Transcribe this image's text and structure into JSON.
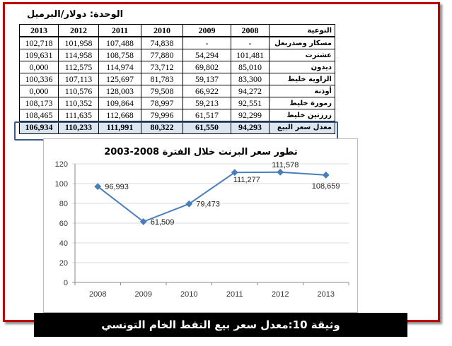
{
  "unit": "الوحدة: دولار/البرميل",
  "table": {
    "headers": [
      "النوعية",
      "2008",
      "2009",
      "2010",
      "2011",
      "2012",
      "2013"
    ],
    "rows": [
      [
        "مسكار وصدربعل",
        "-",
        "-",
        "74,838",
        "107,488",
        "101,958",
        "102,718"
      ],
      [
        "عشترت",
        "101,481",
        "54,294",
        "77,880",
        "108,758",
        "114,958",
        "109,631"
      ],
      [
        "ديدون",
        "85,010",
        "69,802",
        "73,712",
        "114,974",
        "112,575",
        "0,000"
      ],
      [
        "الزاوية خليط",
        "83,300",
        "59,137",
        "81,783",
        "125,697",
        "107,113",
        "100,336"
      ],
      [
        "أوذنة",
        "94,272",
        "66,922",
        "79,508",
        "128,003",
        "110,576",
        "0,000"
      ],
      [
        "رمورة خليط",
        "92,551",
        "59,213",
        "78,997",
        "109,864",
        "110,352",
        "108,173"
      ],
      [
        "زرزتين خليط",
        "92,299",
        "61,517",
        "79,996",
        "112,668",
        "111,635",
        "108,465"
      ]
    ],
    "average_row": [
      "معدل سعر البيع",
      "94,293",
      "61,550",
      "80,322",
      "111,991",
      "110,233",
      "106,934"
    ]
  },
  "chart_data": {
    "type": "line",
    "title": "تطور سعر البرنت خلال الفترة 2008-2003",
    "categories": [
      "2008",
      "2009",
      "2010",
      "2011",
      "2012",
      "2013"
    ],
    "series": [
      {
        "name": "Brent",
        "values": [
          96.993,
          61.509,
          79.473,
          111.277,
          111.578,
          108.659
        ],
        "labels": [
          "96,993",
          "61,509",
          "79,473",
          "111,277",
          "111,578",
          "108,659"
        ],
        "color": "#4a7ebb"
      }
    ],
    "yticks": [
      "0",
      "20",
      "40",
      "60",
      "80",
      "100",
      "120"
    ],
    "ylim": [
      0,
      120
    ],
    "grid": true,
    "xlabel": "",
    "ylabel": ""
  },
  "caption": "وثيقة 10:معدل سعر بيع النفط الخام التونسي"
}
